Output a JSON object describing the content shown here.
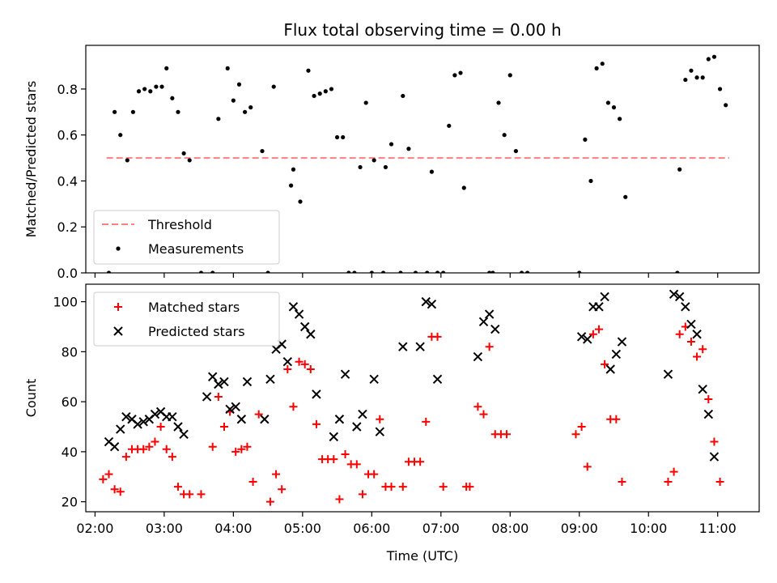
{
  "title": "Flux total observing time = 0.00 h",
  "chart_data": [
    {
      "type": "scatter",
      "ylabel": "Matched/Predicted stars",
      "xlabel": "",
      "xlim": [
        "01:52",
        "11:36"
      ],
      "ylim": [
        0,
        0.99
      ],
      "y_ticks": [
        0.0,
        0.2,
        0.4,
        0.6,
        0.8
      ],
      "y_tick_labels": [
        "0.0",
        "0.2",
        "0.4",
        "0.6",
        "0.8"
      ],
      "legend_position": "lower-left",
      "threshold": {
        "name": "Threshold",
        "value": 0.5,
        "x_range": [
          "02:10",
          "11:10"
        ],
        "color": "#ff7f7f"
      },
      "series": [
        {
          "name": "Measurements",
          "color": "#000000",
          "points": [
            [
              "02:12",
              0.0
            ],
            [
              "02:17",
              0.7
            ],
            [
              "02:22",
              0.6
            ],
            [
              "02:28",
              0.49
            ],
            [
              "02:33",
              0.7
            ],
            [
              "02:38",
              0.79
            ],
            [
              "02:43",
              0.8
            ],
            [
              "02:48",
              0.79
            ],
            [
              "02:53",
              0.81
            ],
            [
              "02:58",
              0.81
            ],
            [
              "03:02",
              0.89
            ],
            [
              "03:07",
              0.76
            ],
            [
              "03:12",
              0.7
            ],
            [
              "03:17",
              0.52
            ],
            [
              "03:22",
              0.49
            ],
            [
              "03:32",
              0.0
            ],
            [
              "03:42",
              0.0
            ],
            [
              "03:47",
              0.67
            ],
            [
              "03:55",
              0.89
            ],
            [
              "04:00",
              0.75
            ],
            [
              "04:05",
              0.82
            ],
            [
              "04:10",
              0.7
            ],
            [
              "04:15",
              0.72
            ],
            [
              "04:25",
              0.53
            ],
            [
              "04:30",
              0.0
            ],
            [
              "04:35",
              0.81
            ],
            [
              "04:50",
              0.38
            ],
            [
              "04:52",
              0.45
            ],
            [
              "04:58",
              0.31
            ],
            [
              "05:05",
              0.88
            ],
            [
              "05:10",
              0.77
            ],
            [
              "05:15",
              0.78
            ],
            [
              "05:20",
              0.79
            ],
            [
              "05:25",
              0.8
            ],
            [
              "05:30",
              0.59
            ],
            [
              "05:35",
              0.59
            ],
            [
              "05:40",
              0.0
            ],
            [
              "05:45",
              0.0
            ],
            [
              "05:50",
              0.46
            ],
            [
              "05:55",
              0.74
            ],
            [
              "06:00",
              0.0
            ],
            [
              "06:02",
              0.49
            ],
            [
              "06:10",
              0.0
            ],
            [
              "06:12",
              0.46
            ],
            [
              "06:17",
              0.56
            ],
            [
              "06:25",
              0.0
            ],
            [
              "06:27",
              0.77
            ],
            [
              "06:32",
              0.54
            ],
            [
              "06:38",
              0.0
            ],
            [
              "06:48",
              0.0
            ],
            [
              "06:52",
              0.44
            ],
            [
              "06:57",
              0.0
            ],
            [
              "07:02",
              0.0
            ],
            [
              "07:07",
              0.64
            ],
            [
              "07:12",
              0.86
            ],
            [
              "07:17",
              0.87
            ],
            [
              "07:20",
              0.37
            ],
            [
              "07:42",
              0.0
            ],
            [
              "07:45",
              0.0
            ],
            [
              "07:50",
              0.74
            ],
            [
              "07:55",
              0.6
            ],
            [
              "08:00",
              0.86
            ],
            [
              "08:05",
              0.53
            ],
            [
              "08:10",
              0.0
            ],
            [
              "08:15",
              0.0
            ],
            [
              "09:00",
              0.0
            ],
            [
              "09:05",
              0.58
            ],
            [
              "09:10",
              0.4
            ],
            [
              "09:15",
              0.89
            ],
            [
              "09:20",
              0.91
            ],
            [
              "09:25",
              0.74
            ],
            [
              "09:30",
              0.72
            ],
            [
              "09:35",
              0.67
            ],
            [
              "09:40",
              0.33
            ],
            [
              "10:25",
              0.0
            ],
            [
              "10:27",
              0.45
            ],
            [
              "10:32",
              0.84
            ],
            [
              "10:37",
              0.88
            ],
            [
              "10:42",
              0.85
            ],
            [
              "10:47",
              0.85
            ],
            [
              "10:52",
              0.93
            ],
            [
              "10:57",
              0.94
            ],
            [
              "11:02",
              0.8
            ],
            [
              "11:07",
              0.73
            ]
          ]
        }
      ]
    },
    {
      "type": "scatter",
      "ylabel": "Count",
      "xlabel": "Time (UTC)",
      "xlim": [
        "01:52",
        "11:36"
      ],
      "ylim": [
        16,
        107
      ],
      "y_ticks": [
        20,
        40,
        60,
        80,
        100
      ],
      "y_tick_labels": [
        "20",
        "40",
        "60",
        "80",
        "100"
      ],
      "x_ticks": [
        "02:00",
        "03:00",
        "04:00",
        "05:00",
        "06:00",
        "07:00",
        "08:00",
        "09:00",
        "10:00",
        "11:00"
      ],
      "x_tick_labels": [
        "02:00",
        "03:00",
        "04:00",
        "05:00",
        "06:00",
        "07:00",
        "08:00",
        "09:00",
        "10:00",
        "11:00"
      ],
      "legend_position": "upper-left",
      "series": [
        {
          "name": "Matched stars",
          "marker": "plus",
          "color": "#ff0000",
          "points": [
            [
              "02:07",
              29
            ],
            [
              "02:12",
              31
            ],
            [
              "02:17",
              25
            ],
            [
              "02:22",
              24
            ],
            [
              "02:27",
              38
            ],
            [
              "02:32",
              41
            ],
            [
              "02:37",
              41
            ],
            [
              "02:42",
              41
            ],
            [
              "02:47",
              42
            ],
            [
              "02:52",
              44
            ],
            [
              "02:57",
              50
            ],
            [
              "03:02",
              41
            ],
            [
              "03:07",
              38
            ],
            [
              "03:12",
              26
            ],
            [
              "03:17",
              23
            ],
            [
              "03:22",
              23
            ],
            [
              "03:32",
              23
            ],
            [
              "03:42",
              42
            ],
            [
              "03:47",
              62
            ],
            [
              "03:52",
              50
            ],
            [
              "03:57",
              56
            ],
            [
              "04:02",
              40
            ],
            [
              "04:07",
              41
            ],
            [
              "04:12",
              42
            ],
            [
              "04:17",
              28
            ],
            [
              "04:22",
              55
            ],
            [
              "04:32",
              20
            ],
            [
              "04:37",
              31
            ],
            [
              "04:42",
              25
            ],
            [
              "04:47",
              73
            ],
            [
              "04:52",
              58
            ],
            [
              "04:57",
              76
            ],
            [
              "05:02",
              75
            ],
            [
              "05:07",
              73
            ],
            [
              "05:12",
              51
            ],
            [
              "05:17",
              37
            ],
            [
              "05:22",
              37
            ],
            [
              "05:27",
              37
            ],
            [
              "05:32",
              21
            ],
            [
              "05:37",
              39
            ],
            [
              "05:42",
              35
            ],
            [
              "05:47",
              35
            ],
            [
              "05:52",
              23
            ],
            [
              "05:57",
              31
            ],
            [
              "06:02",
              31
            ],
            [
              "06:07",
              53
            ],
            [
              "06:12",
              26
            ],
            [
              "06:17",
              26
            ],
            [
              "06:27",
              26
            ],
            [
              "06:32",
              36
            ],
            [
              "06:37",
              36
            ],
            [
              "06:42",
              36
            ],
            [
              "06:47",
              52
            ],
            [
              "06:52",
              86
            ],
            [
              "06:57",
              86
            ],
            [
              "07:02",
              26
            ],
            [
              "07:22",
              26
            ],
            [
              "07:25",
              26
            ],
            [
              "07:32",
              58
            ],
            [
              "07:37",
              55
            ],
            [
              "07:42",
              82
            ],
            [
              "07:47",
              47
            ],
            [
              "07:52",
              47
            ],
            [
              "07:57",
              47
            ],
            [
              "08:57",
              47
            ],
            [
              "09:02",
              50
            ],
            [
              "09:07",
              34
            ],
            [
              "09:12",
              87
            ],
            [
              "09:17",
              89
            ],
            [
              "09:22",
              75
            ],
            [
              "09:27",
              53
            ],
            [
              "09:32",
              53
            ],
            [
              "09:37",
              28
            ],
            [
              "10:17",
              28
            ],
            [
              "10:22",
              32
            ],
            [
              "10:27",
              87
            ],
            [
              "10:32",
              90
            ],
            [
              "10:37",
              84
            ],
            [
              "10:42",
              78
            ],
            [
              "10:47",
              81
            ],
            [
              "10:52",
              61
            ],
            [
              "10:57",
              44
            ],
            [
              "11:02",
              28
            ]
          ]
        },
        {
          "name": "Predicted stars",
          "marker": "x",
          "color": "#000000",
          "points": [
            [
              "02:12",
              44
            ],
            [
              "02:17",
              42
            ],
            [
              "02:22",
              49
            ],
            [
              "02:27",
              54
            ],
            [
              "02:32",
              53
            ],
            [
              "02:37",
              51
            ],
            [
              "02:42",
              52
            ],
            [
              "02:47",
              53
            ],
            [
              "02:52",
              55
            ],
            [
              "02:57",
              56
            ],
            [
              "03:02",
              54
            ],
            [
              "03:07",
              54
            ],
            [
              "03:12",
              50
            ],
            [
              "03:17",
              47
            ],
            [
              "03:37",
              62
            ],
            [
              "03:42",
              70
            ],
            [
              "03:47",
              67
            ],
            [
              "03:52",
              68
            ],
            [
              "03:57",
              57
            ],
            [
              "04:02",
              58
            ],
            [
              "04:07",
              53
            ],
            [
              "04:12",
              68
            ],
            [
              "04:27",
              53
            ],
            [
              "04:32",
              69
            ],
            [
              "04:37",
              81
            ],
            [
              "04:42",
              83
            ],
            [
              "04:47",
              76
            ],
            [
              "04:52",
              98
            ],
            [
              "04:57",
              95
            ],
            [
              "05:02",
              90
            ],
            [
              "05:07",
              87
            ],
            [
              "05:12",
              63
            ],
            [
              "05:27",
              46
            ],
            [
              "05:32",
              53
            ],
            [
              "05:37",
              71
            ],
            [
              "05:47",
              50
            ],
            [
              "05:52",
              55
            ],
            [
              "06:02",
              69
            ],
            [
              "06:07",
              48
            ],
            [
              "06:27",
              82
            ],
            [
              "06:42",
              82
            ],
            [
              "06:47",
              100
            ],
            [
              "06:52",
              99
            ],
            [
              "06:57",
              69
            ],
            [
              "07:32",
              78
            ],
            [
              "07:37",
              92
            ],
            [
              "07:42",
              95
            ],
            [
              "07:47",
              89
            ],
            [
              "09:02",
              86
            ],
            [
              "09:07",
              85
            ],
            [
              "09:12",
              98
            ],
            [
              "09:17",
              98
            ],
            [
              "09:22",
              102
            ],
            [
              "09:27",
              73
            ],
            [
              "09:32",
              79
            ],
            [
              "09:37",
              84
            ],
            [
              "10:17",
              71
            ],
            [
              "10:22",
              103
            ],
            [
              "10:27",
              102
            ],
            [
              "10:32",
              98
            ],
            [
              "10:37",
              91
            ],
            [
              "10:42",
              87
            ],
            [
              "10:47",
              65
            ],
            [
              "10:52",
              55
            ],
            [
              "10:57",
              38
            ]
          ]
        }
      ]
    }
  ]
}
